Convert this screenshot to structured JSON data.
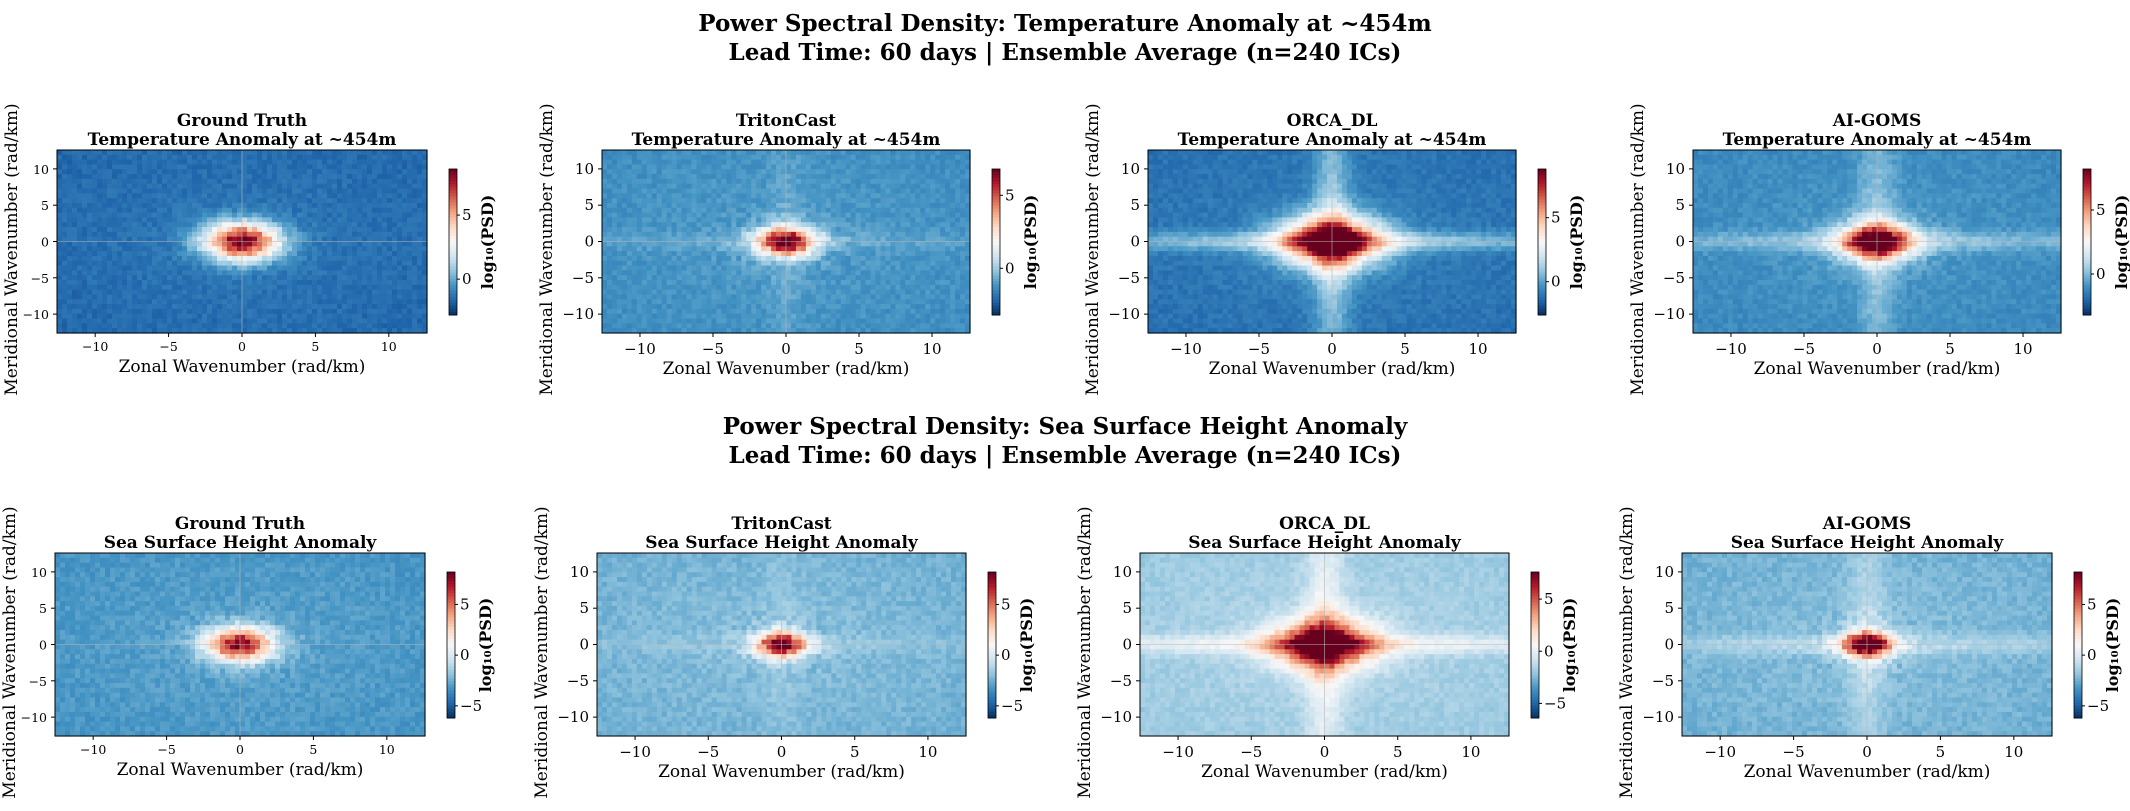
{
  "figure": {
    "row_titles": [
      {
        "line1": "Power Spectral Density: Temperature Anomaly at ~454m",
        "line2": "Lead Time: 60 days | Ensemble Average (n=240 ICs)"
      },
      {
        "line1": "Power Spectral Density: Sea Surface Height Anomaly",
        "line2": "Lead Time: 60 days | Ensemble Average (n=240 ICs)"
      }
    ]
  },
  "colors": {
    "colormap": "RdBu_r",
    "low": "#053061",
    "mid": "#f7f7f7",
    "high": "#67001f"
  },
  "chart_data": [
    {
      "type": "heatmap",
      "model": "Ground Truth",
      "variable": "Temperature Anomaly at ~454m",
      "xlabel": "Zonal Wavenumber (rad/km)",
      "ylabel": "Meridional Wavenumber (rad/km)",
      "xlim": [
        -12.6,
        12.6
      ],
      "ylim": [
        -12.6,
        12.6
      ],
      "xticks": [
        -10,
        -5,
        0,
        5,
        10
      ],
      "yticks": [
        -10,
        -5,
        0,
        5,
        10
      ],
      "colorbar_label": "log₁₀(PSD)",
      "clim": [
        -2.8,
        8.6
      ],
      "colorbar_ticks": [
        0,
        5
      ],
      "peak_log10_psd": 8.6,
      "background_log10_psd": -1.2,
      "peak_spread": 1.8,
      "cross_arm_strength": 0.0
    },
    {
      "type": "heatmap",
      "model": "TritonCast",
      "variable": "Temperature Anomaly at ~454m",
      "xlabel": "Zonal Wavenumber (rad/km)",
      "ylabel": "Meridional Wavenumber (rad/km)",
      "xlim": [
        -12.6,
        12.6
      ],
      "ylim": [
        -12.6,
        12.6
      ],
      "xticks": [
        -10,
        -5,
        0,
        5,
        10
      ],
      "yticks": [
        -10,
        -5,
        0,
        5,
        10
      ],
      "colorbar_label": "log₁₀(PSD)",
      "clim": [
        -3.2,
        6.8
      ],
      "colorbar_ticks": [
        0,
        5
      ],
      "peak_log10_psd": 6.8,
      "background_log10_psd": -1.0,
      "peak_spread": 1.4,
      "cross_arm_strength": 0.12
    },
    {
      "type": "heatmap",
      "model": "ORCA_DL",
      "variable": "Temperature Anomaly at ~454m",
      "xlabel": "Zonal Wavenumber (rad/km)",
      "ylabel": "Meridional Wavenumber (rad/km)",
      "xlim": [
        -12.6,
        12.6
      ],
      "ylim": [
        -12.6,
        12.6
      ],
      "xticks": [
        -10,
        -5,
        0,
        5,
        10
      ],
      "yticks": [
        -10,
        -5,
        0,
        5,
        10
      ],
      "colorbar_label": "log₁₀(PSD)",
      "clim": [
        -2.6,
        8.8
      ],
      "colorbar_ticks": [
        0,
        5
      ],
      "peak_log10_psd": 8.8,
      "background_log10_psd": -0.8,
      "peak_spread": 2.4,
      "cross_arm_strength": 0.55
    },
    {
      "type": "heatmap",
      "model": "AI-GOMS",
      "variable": "Temperature Anomaly at ~454m",
      "xlabel": "Zonal Wavenumber (rad/km)",
      "ylabel": "Meridional Wavenumber (rad/km)",
      "xlim": [
        -12.6,
        12.6
      ],
      "ylim": [
        -12.6,
        12.6
      ],
      "xticks": [
        -10,
        -5,
        0,
        5,
        10
      ],
      "yticks": [
        -10,
        -5,
        0,
        5,
        10
      ],
      "colorbar_label": "log₁₀(PSD)",
      "clim": [
        -3.2,
        8.2
      ],
      "colorbar_ticks": [
        0,
        5
      ],
      "peak_log10_psd": 8.0,
      "background_log10_psd": -0.8,
      "peak_spread": 1.8,
      "cross_arm_strength": 0.35
    },
    {
      "type": "heatmap",
      "model": "Ground Truth",
      "variable": "Sea Surface Height Anomaly",
      "xlabel": "Zonal Wavenumber (rad/km)",
      "ylabel": "Meridional Wavenumber (rad/km)",
      "xlim": [
        -12.6,
        12.6
      ],
      "ylim": [
        -12.6,
        12.6
      ],
      "xticks": [
        -10,
        -5,
        0,
        5,
        10
      ],
      "yticks": [
        -10,
        -5,
        0,
        5,
        10
      ],
      "colorbar_label": "log₁₀(PSD)",
      "clim": [
        -6.2,
        8.2
      ],
      "colorbar_ticks": [
        -5,
        0,
        5
      ],
      "peak_log10_psd": 7.8,
      "background_log10_psd": -2.8,
      "peak_spread": 1.6,
      "cross_arm_strength": 0.0
    },
    {
      "type": "heatmap",
      "model": "TritonCast",
      "variable": "Sea Surface Height Anomaly",
      "xlabel": "Zonal Wavenumber (rad/km)",
      "ylabel": "Meridional Wavenumber (rad/km)",
      "xlim": [
        -12.6,
        12.6
      ],
      "ylim": [
        -12.6,
        12.6
      ],
      "xticks": [
        -10,
        -5,
        0,
        5,
        10
      ],
      "yticks": [
        -10,
        -5,
        0,
        5,
        10
      ],
      "colorbar_label": "log₁₀(PSD)",
      "clim": [
        -6.2,
        8.2
      ],
      "colorbar_ticks": [
        -5,
        0,
        5
      ],
      "peak_log10_psd": 8.0,
      "background_log10_psd": -2.0,
      "peak_spread": 1.2,
      "cross_arm_strength": 0.1
    },
    {
      "type": "heatmap",
      "model": "ORCA_DL",
      "variable": "Sea Surface Height Anomaly",
      "xlabel": "Zonal Wavenumber (rad/km)",
      "ylabel": "Meridional Wavenumber (rad/km)",
      "xlim": [
        -12.6,
        12.6
      ],
      "ylim": [
        -12.6,
        12.6
      ],
      "xticks": [
        -10,
        -5,
        0,
        5,
        10
      ],
      "yticks": [
        -10,
        -5,
        0,
        5,
        10
      ],
      "colorbar_label": "log₁₀(PSD)",
      "clim": [
        -6.4,
        7.6
      ],
      "colorbar_ticks": [
        -5,
        0,
        5
      ],
      "peak_log10_psd": 7.6,
      "background_log10_psd": -1.5,
      "peak_spread": 2.4,
      "cross_arm_strength": 0.6
    },
    {
      "type": "heatmap",
      "model": "AI-GOMS",
      "variable": "Sea Surface Height Anomaly",
      "xlabel": "Zonal Wavenumber (rad/km)",
      "ylabel": "Meridional Wavenumber (rad/km)",
      "xlim": [
        -12.6,
        12.6
      ],
      "ylim": [
        -12.6,
        12.6
      ],
      "xticks": [
        -10,
        -5,
        0,
        5,
        10
      ],
      "yticks": [
        -10,
        -5,
        0,
        5,
        10
      ],
      "colorbar_label": "log₁₀(PSD)",
      "clim": [
        -6.2,
        8.2
      ],
      "colorbar_ticks": [
        -5,
        0,
        5
      ],
      "peak_log10_psd": 8.0,
      "background_log10_psd": -2.0,
      "peak_spread": 1.2,
      "cross_arm_strength": 0.3
    }
  ]
}
